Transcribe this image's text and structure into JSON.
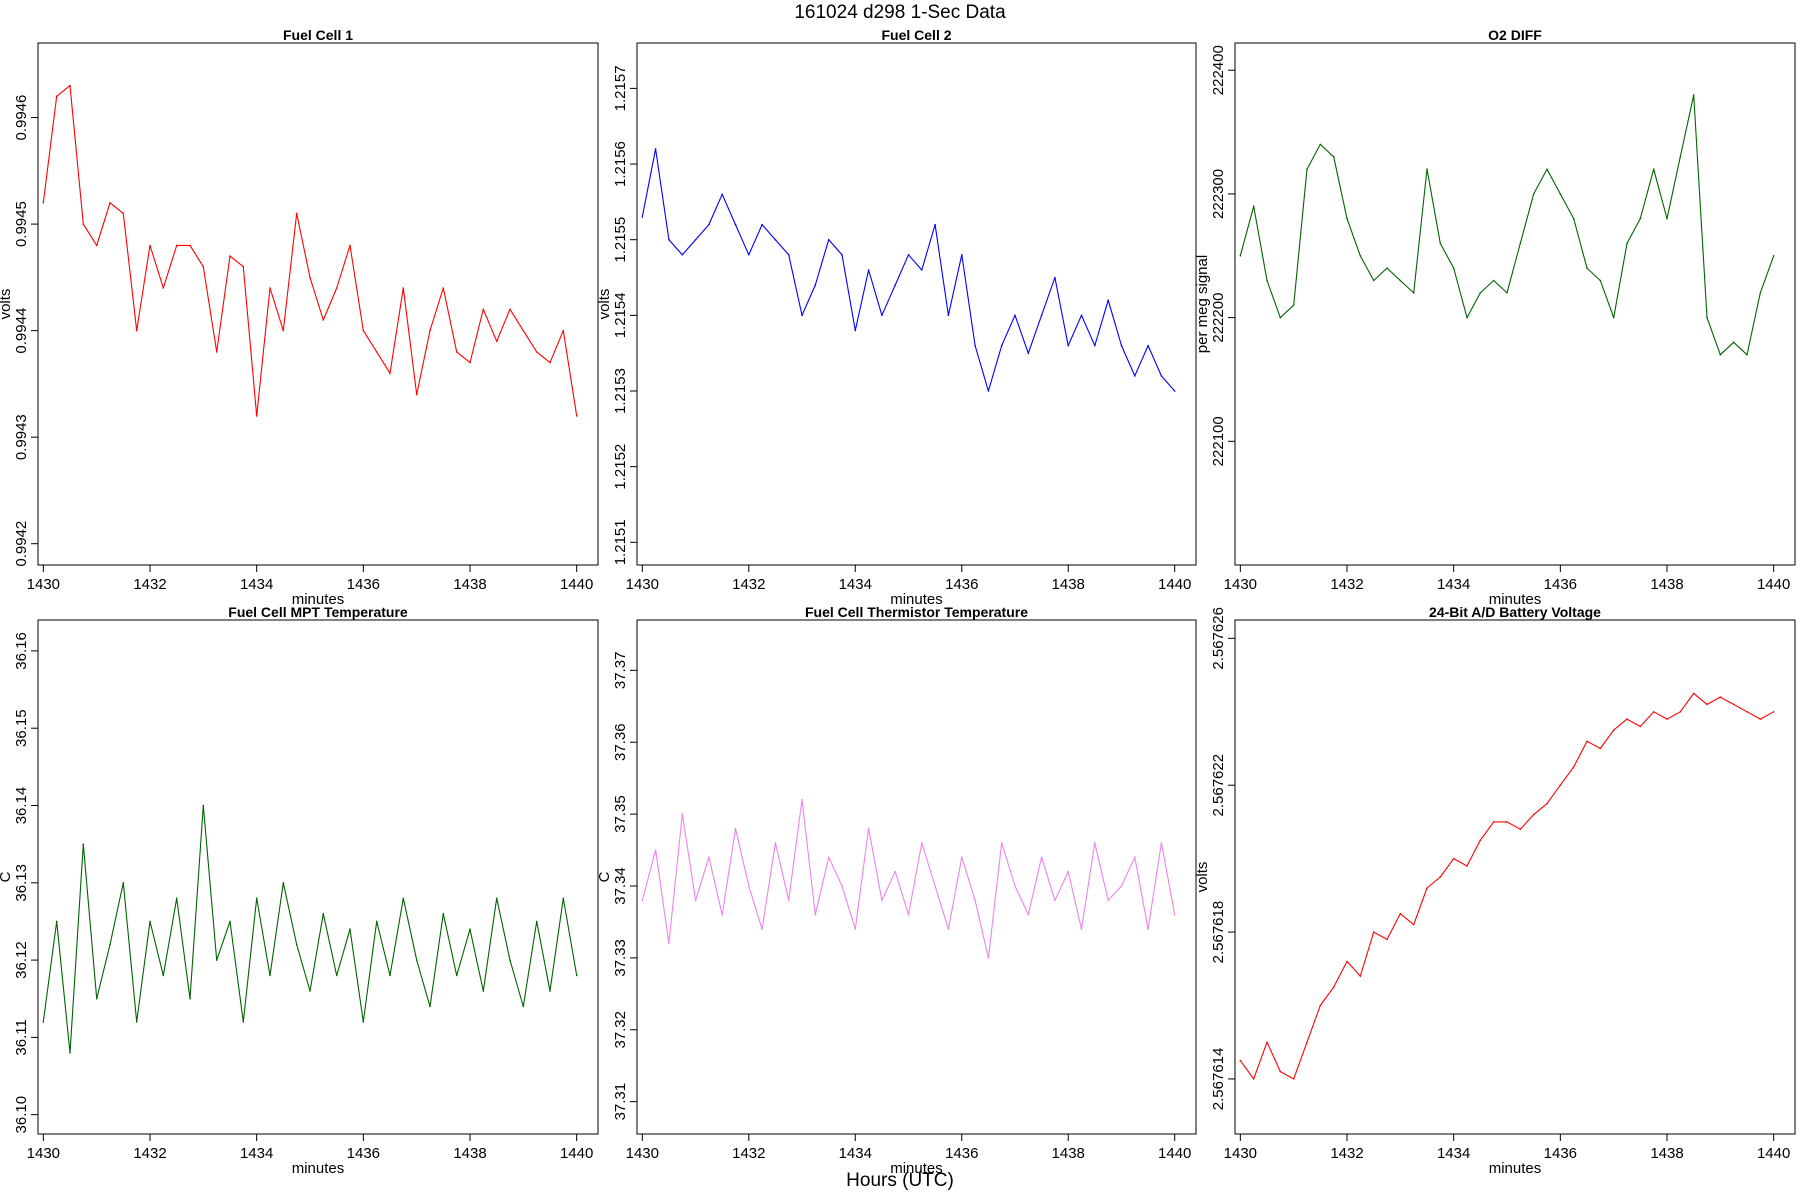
{
  "header": {
    "title": "161024   d298   1-Sec Data"
  },
  "footer": {
    "xlabel": "Hours (UTC)"
  },
  "chart_data": [
    {
      "type": "line",
      "title": "Fuel Cell 1",
      "xlabel": "minutes",
      "ylabel": "volts",
      "color": "#ff0000",
      "xlim": [
        1429.9,
        1440.4
      ],
      "ylim": [
        0.99418,
        0.99467
      ],
      "xticks": [
        1430,
        1432,
        1434,
        1436,
        1438,
        1440
      ],
      "yticks": [
        0.9942,
        0.9943,
        0.9944,
        0.9945,
        0.9946
      ],
      "ytick_labels": [
        "0.9942",
        "0.9943",
        "0.9944",
        "0.9945",
        "0.9946"
      ],
      "series": [
        {
          "x": [
            1430.0,
            1430.25,
            1430.5,
            1430.75,
            1431.0,
            1431.25,
            1431.5,
            1431.75,
            1432.0,
            1432.25,
            1432.5,
            1432.75,
            1433.0,
            1433.25,
            1433.5,
            1433.75,
            1434.0,
            1434.25,
            1434.5,
            1434.75,
            1435.0,
            1435.25,
            1435.5,
            1435.75,
            1436.0,
            1436.25,
            1436.5,
            1436.75,
            1437.0,
            1437.25,
            1437.5,
            1437.75,
            1438.0,
            1438.25,
            1438.5,
            1438.75,
            1439.0,
            1439.25,
            1439.5,
            1439.75,
            1440.0
          ],
          "y": [
            0.99452,
            0.99462,
            0.99463,
            0.9945,
            0.99448,
            0.99452,
            0.99451,
            0.9944,
            0.99448,
            0.99444,
            0.99448,
            0.99448,
            0.99446,
            0.99438,
            0.99447,
            0.99446,
            0.99432,
            0.99444,
            0.9944,
            0.99451,
            0.99445,
            0.99441,
            0.99444,
            0.99448,
            0.9944,
            0.99438,
            0.99436,
            0.99444,
            0.99434,
            0.9944,
            0.99444,
            0.99438,
            0.99437,
            0.99442,
            0.99439,
            0.99442,
            0.9944,
            0.99438,
            0.99437,
            0.9944,
            0.99432
          ]
        }
      ]
    },
    {
      "type": "line",
      "title": "Fuel Cell 2",
      "xlabel": "minutes",
      "ylabel": "volts",
      "color": "#0000ff",
      "xlim": [
        1429.9,
        1440.4
      ],
      "ylim": [
        1.21507,
        1.21576
      ],
      "xticks": [
        1430,
        1432,
        1434,
        1436,
        1438,
        1440
      ],
      "yticks": [
        1.2151,
        1.2152,
        1.2153,
        1.2154,
        1.2155,
        1.2156,
        1.2157
      ],
      "ytick_labels": [
        "1.2151",
        "1.2152",
        "1.2153",
        "1.2154",
        "1.2155",
        "1.2156",
        "1.2157"
      ],
      "series": [
        {
          "x": [
            1430.0,
            1430.25,
            1430.5,
            1430.75,
            1431.0,
            1431.25,
            1431.5,
            1431.75,
            1432.0,
            1432.25,
            1432.5,
            1432.75,
            1433.0,
            1433.25,
            1433.5,
            1433.75,
            1434.0,
            1434.25,
            1434.5,
            1434.75,
            1435.0,
            1435.25,
            1435.5,
            1435.75,
            1436.0,
            1436.25,
            1436.5,
            1436.75,
            1437.0,
            1437.25,
            1437.5,
            1437.75,
            1438.0,
            1438.25,
            1438.5,
            1438.75,
            1439.0,
            1439.25,
            1439.5,
            1439.75,
            1440.0
          ],
          "y": [
            1.21553,
            1.21562,
            1.2155,
            1.21548,
            1.2155,
            1.21552,
            1.21556,
            1.21552,
            1.21548,
            1.21552,
            1.2155,
            1.21548,
            1.2154,
            1.21544,
            1.2155,
            1.21548,
            1.21538,
            1.21546,
            1.2154,
            1.21544,
            1.21548,
            1.21546,
            1.21552,
            1.2154,
            1.21548,
            1.21536,
            1.2153,
            1.21536,
            1.2154,
            1.21535,
            1.2154,
            1.21545,
            1.21536,
            1.2154,
            1.21536,
            1.21542,
            1.21536,
            1.21532,
            1.21536,
            1.21532,
            1.2153
          ]
        }
      ]
    },
    {
      "type": "line",
      "title": "O2 DIFF",
      "xlabel": "minutes",
      "ylabel": "per meg signal",
      "color": "#006400",
      "xlim": [
        1429.9,
        1440.4
      ],
      "ylim": [
        222000,
        222422
      ],
      "xticks": [
        1430,
        1432,
        1434,
        1436,
        1438,
        1440
      ],
      "yticks": [
        222100,
        222200,
        222300,
        222400
      ],
      "ytick_labels": [
        "222100",
        "222200",
        "222300",
        "222400"
      ],
      "series": [
        {
          "x": [
            1430.0,
            1430.25,
            1430.5,
            1430.75,
            1431.0,
            1431.25,
            1431.5,
            1431.75,
            1432.0,
            1432.25,
            1432.5,
            1432.75,
            1433.0,
            1433.25,
            1433.5,
            1433.75,
            1434.0,
            1434.25,
            1434.5,
            1434.75,
            1435.0,
            1435.25,
            1435.5,
            1435.75,
            1436.0,
            1436.25,
            1436.5,
            1436.75,
            1437.0,
            1437.25,
            1437.5,
            1437.75,
            1438.0,
            1438.25,
            1438.5,
            1438.75,
            1439.0,
            1439.25,
            1439.5,
            1439.75,
            1440.0
          ],
          "y": [
            222250,
            222290,
            222230,
            222200,
            222210,
            222320,
            222340,
            222330,
            222280,
            222250,
            222230,
            222240,
            222230,
            222220,
            222320,
            222260,
            222240,
            222200,
            222220,
            222230,
            222220,
            222260,
            222300,
            222320,
            222300,
            222280,
            222240,
            222230,
            222200,
            222260,
            222280,
            222320,
            222280,
            222330,
            222380,
            222200,
            222170,
            222180,
            222170,
            222220,
            222250
          ]
        }
      ]
    },
    {
      "type": "line",
      "title": "Fuel Cell MPT Temperature",
      "xlabel": "minutes",
      "ylabel": "C",
      "color": "#006400",
      "xlim": [
        1429.9,
        1440.4
      ],
      "ylim": [
        36.0975,
        36.164
      ],
      "xticks": [
        1430,
        1432,
        1434,
        1436,
        1438,
        1440
      ],
      "yticks": [
        36.1,
        36.11,
        36.12,
        36.13,
        36.14,
        36.15,
        36.16
      ],
      "ytick_labels": [
        "36.10",
        "36.11",
        "36.12",
        "36.13",
        "36.14",
        "36.15",
        "36.16"
      ],
      "series": [
        {
          "x": [
            1430.0,
            1430.25,
            1430.5,
            1430.75,
            1431.0,
            1431.25,
            1431.5,
            1431.75,
            1432.0,
            1432.25,
            1432.5,
            1432.75,
            1433.0,
            1433.25,
            1433.5,
            1433.75,
            1434.0,
            1434.25,
            1434.5,
            1434.75,
            1435.0,
            1435.25,
            1435.5,
            1435.75,
            1436.0,
            1436.25,
            1436.5,
            1436.75,
            1437.0,
            1437.25,
            1437.5,
            1437.75,
            1438.0,
            1438.25,
            1438.5,
            1438.75,
            1439.0,
            1439.25,
            1439.5,
            1439.75,
            1440.0
          ],
          "y": [
            36.112,
            36.125,
            36.108,
            36.135,
            36.115,
            36.122,
            36.13,
            36.112,
            36.125,
            36.118,
            36.128,
            36.115,
            36.14,
            36.12,
            36.125,
            36.112,
            36.128,
            36.118,
            36.13,
            36.122,
            36.116,
            36.126,
            36.118,
            36.124,
            36.112,
            36.125,
            36.118,
            36.128,
            36.12,
            36.114,
            36.126,
            36.118,
            36.124,
            36.116,
            36.128,
            36.12,
            36.114,
            36.125,
            36.116,
            36.128,
            36.118
          ]
        }
      ]
    },
    {
      "type": "line",
      "title": "Fuel Cell Thermistor Temperature",
      "xlabel": "minutes",
      "ylabel": "C",
      "color": "#ee82ee",
      "xlim": [
        1429.9,
        1440.4
      ],
      "ylim": [
        37.3055,
        37.377
      ],
      "xticks": [
        1430,
        1432,
        1434,
        1436,
        1438,
        1440
      ],
      "yticks": [
        37.31,
        37.32,
        37.33,
        37.34,
        37.35,
        37.36,
        37.37
      ],
      "ytick_labels": [
        "37.31",
        "37.32",
        "37.33",
        "37.34",
        "37.35",
        "37.36",
        "37.37"
      ],
      "series": [
        {
          "x": [
            1430.0,
            1430.25,
            1430.5,
            1430.75,
            1431.0,
            1431.25,
            1431.5,
            1431.75,
            1432.0,
            1432.25,
            1432.5,
            1432.75,
            1433.0,
            1433.25,
            1433.5,
            1433.75,
            1434.0,
            1434.25,
            1434.5,
            1434.75,
            1435.0,
            1435.25,
            1435.5,
            1435.75,
            1436.0,
            1436.25,
            1436.5,
            1436.75,
            1437.0,
            1437.25,
            1437.5,
            1437.75,
            1438.0,
            1438.25,
            1438.5,
            1438.75,
            1439.0,
            1439.25,
            1439.5,
            1439.75,
            1440.0
          ],
          "y": [
            37.338,
            37.345,
            37.332,
            37.35,
            37.338,
            37.344,
            37.336,
            37.348,
            37.34,
            37.334,
            37.346,
            37.338,
            37.352,
            37.336,
            37.344,
            37.34,
            37.334,
            37.348,
            37.338,
            37.342,
            37.336,
            37.346,
            37.34,
            37.334,
            37.344,
            37.338,
            37.33,
            37.346,
            37.34,
            37.336,
            37.344,
            37.338,
            37.342,
            37.334,
            37.346,
            37.338,
            37.34,
            37.344,
            37.334,
            37.346,
            37.336
          ]
        }
      ]
    },
    {
      "type": "line",
      "title": "24-Bit A/D Battery Voltage",
      "xlabel": "minutes",
      "ylabel": "volts",
      "color": "#ff0000",
      "xlim": [
        1429.9,
        1440.4
      ],
      "ylim": [
        2.5676125,
        2.5676265
      ],
      "xticks": [
        1430,
        1432,
        1434,
        1436,
        1438,
        1440
      ],
      "yticks": [
        2.567614,
        2.567618,
        2.567622,
        2.567626
      ],
      "ytick_labels": [
        "2.567614",
        "2.567618",
        "2.567622",
        "2.567626"
      ],
      "series": [
        {
          "x": [
            1430.0,
            1430.25,
            1430.5,
            1430.75,
            1431.0,
            1431.25,
            1431.5,
            1431.75,
            1432.0,
            1432.25,
            1432.5,
            1432.75,
            1433.0,
            1433.25,
            1433.5,
            1433.75,
            1434.0,
            1434.25,
            1434.5,
            1434.75,
            1435.0,
            1435.25,
            1435.5,
            1435.75,
            1436.0,
            1436.25,
            1436.5,
            1436.75,
            1437.0,
            1437.25,
            1437.5,
            1437.75,
            1438.0,
            1438.25,
            1438.5,
            1438.75,
            1439.0,
            1439.25,
            1439.5,
            1439.75,
            1440.0
          ],
          "y": [
            2.5676145,
            2.567614,
            2.567615,
            2.5676142,
            2.567614,
            2.567615,
            2.567616,
            2.5676165,
            2.5676172,
            2.5676168,
            2.567618,
            2.5676178,
            2.5676185,
            2.5676182,
            2.5676192,
            2.5676195,
            2.56762,
            2.5676198,
            2.5676205,
            2.567621,
            2.567621,
            2.5676208,
            2.5676212,
            2.5676215,
            2.567622,
            2.5676225,
            2.5676232,
            2.567623,
            2.5676235,
            2.5676238,
            2.5676236,
            2.567624,
            2.5676238,
            2.567624,
            2.5676245,
            2.5676242,
            2.5676244,
            2.5676242,
            2.567624,
            2.5676238,
            2.567624
          ]
        }
      ]
    }
  ]
}
